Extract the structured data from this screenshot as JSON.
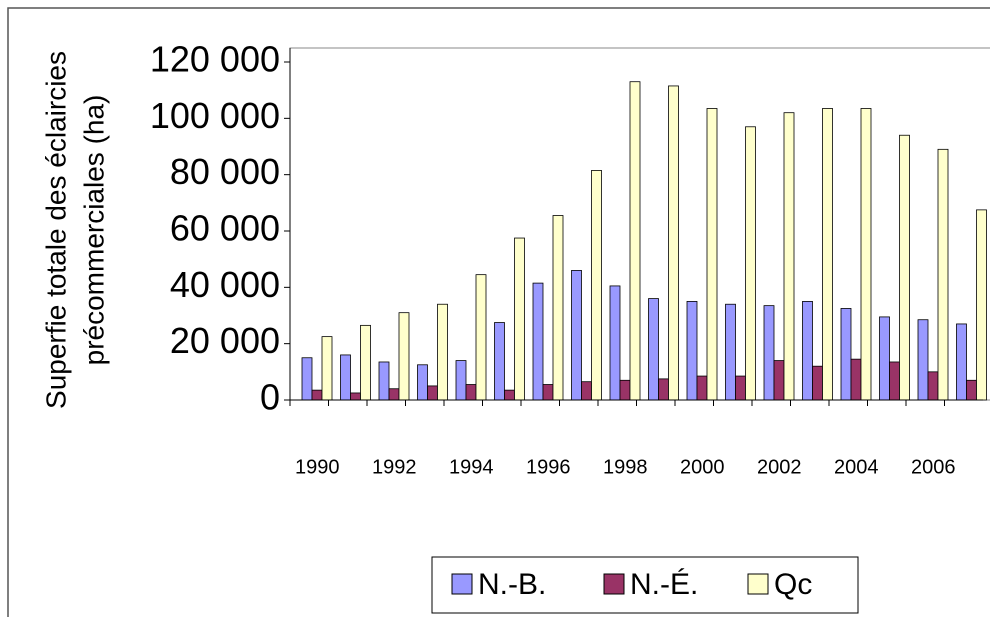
{
  "chart_data": {
    "type": "bar",
    "y_label": [
      "Superfie totale des éclaircies",
      "précommerciales (ha)"
    ],
    "categories": [
      "1990",
      null,
      "1992",
      null,
      "1994",
      null,
      "1996",
      null,
      "1998",
      null,
      "2000",
      null,
      "2002",
      null,
      "2004",
      null,
      "2006",
      null
    ],
    "series": [
      {
        "name": "N.-B.",
        "color": "#9999ff",
        "values": [
          15000,
          16000,
          13500,
          12500,
          14000,
          27500,
          41500,
          46000,
          40500,
          36000,
          35000,
          34000,
          33500,
          35000,
          32500,
          29500,
          28500,
          27000
        ]
      },
      {
        "name": "N.-É.",
        "color": "#993366",
        "values": [
          3500,
          2500,
          4000,
          5000,
          5500,
          3500,
          5500,
          6500,
          7000,
          7500,
          8500,
          8500,
          14000,
          12000,
          14500,
          13500,
          10000,
          7000
        ]
      },
      {
        "name": "Qc",
        "color": "#ffffcc",
        "values": [
          22500,
          26500,
          31000,
          34000,
          44500,
          57500,
          65500,
          81500,
          113000,
          111500,
          103500,
          97000,
          102000,
          103500,
          103500,
          94000,
          89000,
          67500
        ]
      }
    ],
    "ylim": [
      0,
      120000
    ],
    "yticks": [
      0,
      {
        "value": 20000,
        "label": "20 000"
      },
      {
        "value": 40000,
        "label": "40 000"
      },
      {
        "value": 60000,
        "label": "60 000"
      },
      {
        "value": 80000,
        "label": "80 000"
      },
      {
        "value": 100000,
        "label": "100 000"
      },
      {
        "value": 120000,
        "label": "120 000"
      }
    ],
    "legend": "bottom"
  }
}
